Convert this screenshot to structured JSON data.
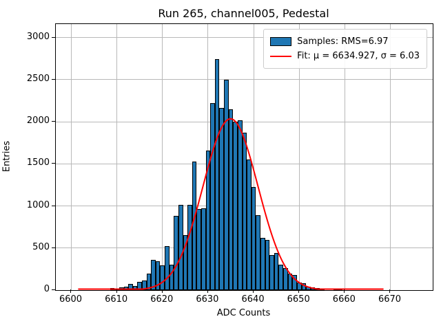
{
  "window_title": "Run 265, channel005, Pedestal",
  "chart_data": {
    "type": "bar",
    "subtype": "histogram",
    "title": "Run 265, channel005, Pedestal",
    "xlabel": "ADC Counts",
    "ylabel": "Entries",
    "xlim": [
      6596.6,
      6679.3
    ],
    "ylim": [
      0,
      3160
    ],
    "xticks": [
      6600,
      6610,
      6620,
      6630,
      6640,
      6650,
      6660,
      6670
    ],
    "yticks": [
      0,
      500,
      1000,
      1500,
      2000,
      2500,
      3000
    ],
    "grid": true,
    "bin_width": 1,
    "bins": [
      [
        6608.5,
        24
      ],
      [
        6609.5,
        15
      ],
      [
        6610.5,
        35
      ],
      [
        6611.5,
        40
      ],
      [
        6612.5,
        73
      ],
      [
        6613.5,
        52
      ],
      [
        6614.5,
        95
      ],
      [
        6615.5,
        115
      ],
      [
        6616.5,
        195
      ],
      [
        6617.5,
        360
      ],
      [
        6618.5,
        345
      ],
      [
        6619.5,
        290
      ],
      [
        6620.5,
        520
      ],
      [
        6621.5,
        305
      ],
      [
        6622.5,
        880
      ],
      [
        6623.5,
        1010
      ],
      [
        6624.5,
        650
      ],
      [
        6625.5,
        1010
      ],
      [
        6626.5,
        1530
      ],
      [
        6627.5,
        960
      ],
      [
        6628.5,
        975
      ],
      [
        6629.5,
        1660
      ],
      [
        6630.5,
        2220
      ],
      [
        6631.5,
        2745
      ],
      [
        6632.5,
        2165
      ],
      [
        6633.5,
        2500
      ],
      [
        6634.5,
        2150
      ],
      [
        6635.5,
        2000
      ],
      [
        6636.5,
        2020
      ],
      [
        6637.5,
        1870
      ],
      [
        6638.5,
        1555
      ],
      [
        6639.5,
        1225
      ],
      [
        6640.5,
        890
      ],
      [
        6641.5,
        620
      ],
      [
        6642.5,
        595
      ],
      [
        6643.5,
        420
      ],
      [
        6644.5,
        445
      ],
      [
        6645.5,
        300
      ],
      [
        6646.5,
        265
      ],
      [
        6647.5,
        195
      ],
      [
        6648.5,
        180
      ],
      [
        6649.5,
        87
      ],
      [
        6650.5,
        82
      ],
      [
        6651.5,
        38
      ],
      [
        6652.5,
        34
      ],
      [
        6653.5,
        22
      ],
      [
        6654.5,
        15
      ],
      [
        6657.5,
        18
      ],
      [
        6658.5,
        12
      ]
    ],
    "fit": {
      "mu": 6634.927,
      "sigma": 6.03,
      "amplitude": 2035,
      "x_start": 6601.5,
      "x_end": 6668.5
    },
    "legend": [
      {
        "label": "Samples: RMS=6.97",
        "marker": "patch"
      },
      {
        "label": "Fit: μ = 6634.927, σ = 6.03",
        "marker": "line"
      }
    ],
    "stats": {
      "rms": 6.97,
      "fit_mu": 6634.927,
      "fit_sigma": 6.03
    },
    "colors": {
      "bar_fill": "#1f77b4",
      "bar_edge": "#000000",
      "fit_line": "#ff0000",
      "grid": "#b8b8b8",
      "legend_edge": "#cccccc"
    },
    "legend_position": "upper right"
  }
}
